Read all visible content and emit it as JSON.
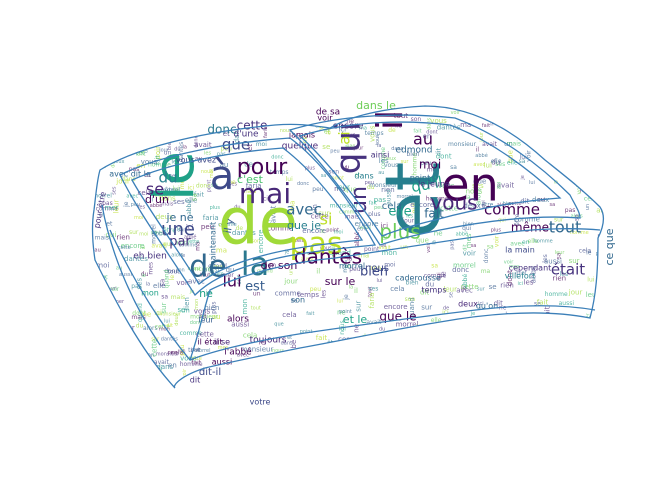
{
  "figure": {
    "colors": {
      "outline": "#3b7fb8",
      "palette": [
        "#440154",
        "#46327e",
        "#365c8d",
        "#277f8e",
        "#1fa187",
        "#4ac16d",
        "#a0da39",
        "#bddf26",
        "#6ece58",
        "#31688e",
        "#3e4a89",
        "#482878"
      ]
    }
  },
  "words": [
    {
      "text": "de",
      "weight": 100,
      "color": "#a0da39"
    },
    {
      "text": "et",
      "weight": 96,
      "color": "#277f8e"
    },
    {
      "text": "le",
      "weight": 88,
      "color": "#1fa187"
    },
    {
      "text": "en",
      "weight": 70,
      "color": "#440154"
    },
    {
      "text": "à",
      "weight": 64,
      "color": "#3e4a89"
    },
    {
      "text": "la",
      "weight": 62,
      "color": "#2a788e"
    },
    {
      "text": "il",
      "weight": 54,
      "color": "#440154"
    },
    {
      "text": "qui",
      "weight": 52,
      "color": "#46327e"
    },
    {
      "text": "mai",
      "weight": 48,
      "color": "#482878"
    },
    {
      "text": "pas",
      "weight": 48,
      "color": "#bddf26"
    },
    {
      "text": "de",
      "weight": 46,
      "color": "#31688e"
    },
    {
      "text": "pour",
      "weight": 42,
      "color": "#440154"
    },
    {
      "text": "vous",
      "weight": 40,
      "color": "#482878"
    },
    {
      "text": "un",
      "weight": 40,
      "color": "#46327e"
    },
    {
      "text": "dantès",
      "weight": 38,
      "color": "#440154"
    },
    {
      "text": "que",
      "weight": 36,
      "color": "#3e4a89"
    },
    {
      "text": "plus",
      "weight": 36,
      "color": "#6ece58"
    },
    {
      "text": "une",
      "weight": 34,
      "color": "#3e4a89"
    },
    {
      "text": "comme",
      "weight": 32,
      "color": "#440154"
    },
    {
      "text": "tout",
      "weight": 32,
      "color": "#31688e"
    },
    {
      "text": "était",
      "weight": 32,
      "color": "#46327e"
    },
    {
      "text": "se",
      "weight": 30,
      "color": "#482878"
    },
    {
      "text": "du",
      "weight": 30,
      "color": "#277f8e"
    },
    {
      "text": "qu'il",
      "weight": 30,
      "color": "#1fa187"
    },
    {
      "text": "au",
      "weight": 28,
      "color": "#440154"
    },
    {
      "text": "si",
      "weight": 28,
      "color": "#bddf26"
    },
    {
      "text": "avec",
      "weight": 28,
      "color": "#31688e"
    },
    {
      "text": "lui",
      "weight": 28,
      "color": "#440154"
    },
    {
      "text": "par",
      "weight": 26,
      "color": "#46327e"
    },
    {
      "text": "est",
      "weight": 26,
      "color": "#365c8d"
    },
    {
      "text": "même",
      "weight": 24,
      "color": "#440154"
    },
    {
      "text": "elle",
      "weight": 24,
      "color": "#1fa187"
    },
    {
      "text": "donc",
      "weight": 24,
      "color": "#2a788e"
    },
    {
      "text": "moi",
      "weight": 22,
      "color": "#440154"
    },
    {
      "text": "bien",
      "weight": 22,
      "color": "#3e4a89"
    },
    {
      "text": "fait",
      "weight": 22,
      "color": "#31688e"
    },
    {
      "text": "que le",
      "weight": 22,
      "color": "#440154"
    },
    {
      "text": "cette",
      "weight": 22,
      "color": "#46327e"
    },
    {
      "text": "sur le",
      "weight": 22,
      "color": "#440154"
    },
    {
      "text": "de son",
      "weight": 20,
      "color": "#440154"
    },
    {
      "text": "dans le",
      "weight": 20,
      "color": "#6ece58"
    },
    {
      "text": "c'est",
      "weight": 20,
      "color": "#4ac16d"
    },
    {
      "text": "que je",
      "weight": 20,
      "color": "#277f8e"
    },
    {
      "text": "ce que",
      "weight": 20,
      "color": "#31688e"
    },
    {
      "text": "ai",
      "weight": 20,
      "color": "#bddf26"
    },
    {
      "text": "et le",
      "weight": 18,
      "color": "#1fa187"
    },
    {
      "text": "je ne",
      "weight": 18,
      "color": "#31688e"
    },
    {
      "text": "d'un",
      "weight": 18,
      "color": "#440154"
    },
    {
      "text": "ne",
      "weight": 18,
      "color": "#1fa187"
    },
    {
      "text": "edmond",
      "weight": 16,
      "color": "#31688e"
    },
    {
      "text": "encore",
      "weight": 16,
      "color": "#46327e"
    },
    {
      "text": "nous",
      "weight": 16,
      "color": "#3e4a89"
    },
    {
      "text": "cela",
      "weight": 16,
      "color": "#31688e"
    },
    {
      "text": "de sa",
      "weight": 16,
      "color": "#440154"
    },
    {
      "text": "d'une",
      "weight": 16,
      "color": "#46327e"
    },
    {
      "text": "quelque",
      "weight": 16,
      "color": "#482878"
    },
    {
      "text": "il y",
      "weight": 16,
      "color": "#365c8d"
    },
    {
      "text": "eh bien",
      "weight": 14,
      "color": "#46327e"
    },
    {
      "text": "toujours",
      "weight": 14,
      "color": "#482878"
    },
    {
      "text": "alors",
      "weight": 14,
      "color": "#440154"
    },
    {
      "text": "l'abbé",
      "weight": 14,
      "color": "#440154"
    },
    {
      "text": "dit-il",
      "weight": 14,
      "color": "#3e4a89"
    },
    {
      "text": "point",
      "weight": 12,
      "color": "#31688e"
    },
    {
      "text": "caderousse",
      "weight": 12,
      "color": "#31688e"
    },
    {
      "text": "villefort",
      "weight": 12,
      "color": "#277f8e"
    },
    {
      "text": "cependant",
      "weight": 12,
      "color": "#46327e"
    },
    {
      "text": "votre",
      "weight": 12,
      "color": "#3e4a89"
    },
    {
      "text": "aussi",
      "weight": 12,
      "color": "#440154"
    },
    {
      "text": "deux",
      "weight": 12,
      "color": "#482878"
    },
    {
      "text": "leur",
      "weight": 12,
      "color": "#365c8d"
    },
    {
      "text": "mon",
      "weight": 12,
      "color": "#1fa187"
    },
    {
      "text": "voir",
      "weight": 12,
      "color": "#440154"
    },
    {
      "text": "le jeune",
      "weight": 12,
      "color": "#46327e"
    },
    {
      "text": "qu'on",
      "weight": 12,
      "color": "#31688e"
    },
    {
      "text": "ainsi",
      "weight": 12,
      "color": "#46327e"
    },
    {
      "text": "morrel",
      "weight": 12,
      "color": "#31688e"
    },
    {
      "text": "avec dit le",
      "weight": 12,
      "color": "#31688e"
    },
    {
      "text": "pour être",
      "weight": 12,
      "color": "#46327e"
    },
    {
      "text": "il était",
      "weight": 12,
      "color": "#440154"
    },
    {
      "text": "vous avez",
      "weight": 12,
      "color": "#3e4a89"
    },
    {
      "text": "maintenant",
      "weight": 12,
      "color": "#31688e"
    },
    {
      "text": "dans",
      "weight": 12,
      "color": "#277f8e"
    },
    {
      "text": "temps",
      "weight": 12,
      "color": "#46327e"
    },
    {
      "text": "la main",
      "weight": 12,
      "color": "#3e4a89"
    },
    {
      "text": "son",
      "weight": 12,
      "color": "#31688e"
    },
    {
      "text": "il se",
      "weight": 12,
      "color": "#482878"
    },
    {
      "text": "jamais",
      "weight": 12,
      "color": "#440154"
    },
    {
      "text": "dit",
      "weight": 12,
      "color": "#46327e"
    }
  ],
  "filler": {
    "samples": [
      "de",
      "la",
      "le",
      "et",
      "que",
      "les",
      "il",
      "un",
      "en",
      "pas",
      "vous",
      "se",
      "dit",
      "mon",
      "son",
      "sa",
      "je",
      "ne",
      "qui",
      "au",
      "du",
      "lui",
      "mais",
      "moi",
      "bien",
      "fait",
      "nous",
      "cela",
      "dont",
      "leur",
      "peu",
      "dans",
      "avec",
      "tout",
      "sur",
      "cette",
      "comme",
      "donc",
      "elle",
      "plus",
      "être",
      "avait",
      "dantès",
      "faria",
      "morrel",
      "abbé",
      "temps",
      "jour",
      "homme",
      "point",
      "encore",
      "rien",
      "deux",
      "monsieur",
      "aussi",
      "voir",
      "quand",
      "ici",
      "alors",
      "ma",
      "mes",
      "ses",
      "mer"
    ]
  }
}
